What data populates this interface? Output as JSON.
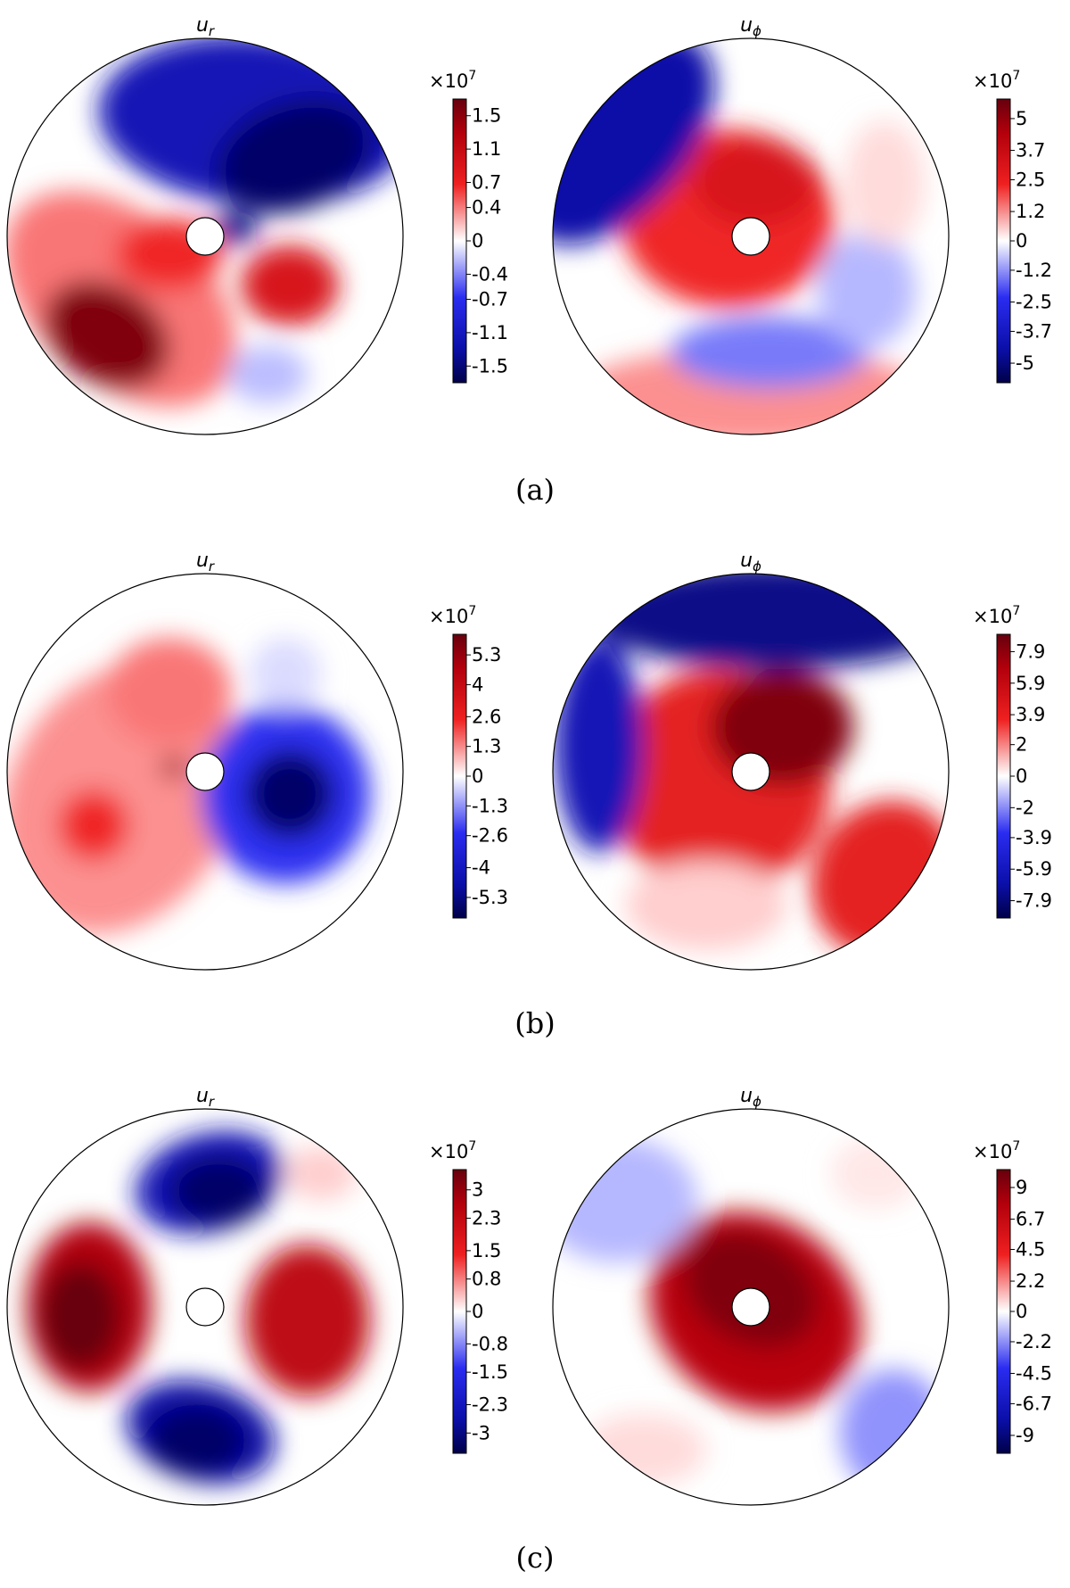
{
  "chart_data": [
    {
      "type": "heatmap",
      "panel": "(a)",
      "title": "u_r",
      "colorbar": {
        "multiplier": "×10",
        "exponent": "7",
        "ticks": [
          "1.5",
          "1.1",
          "0.7",
          "0.4",
          "0",
          "-0.4",
          "-0.7",
          "-1.1",
          "-1.5"
        ],
        "range": [
          -1.7,
          1.7
        ],
        "colormap": "seismic"
      },
      "features": [
        {
          "kind": "positive lobe",
          "region": "lower-left",
          "peak": 1.7
        },
        {
          "kind": "positive lobe",
          "region": "right of center",
          "peak": 1.1
        },
        {
          "kind": "negative lobe",
          "region": "upper half",
          "peak": -1.7
        },
        {
          "kind": "negative lobe",
          "region": "lower-right",
          "peak": -0.4
        }
      ]
    },
    {
      "type": "heatmap",
      "panel": "(a)",
      "title": "u_ϕ",
      "colorbar": {
        "multiplier": "×10",
        "exponent": "7",
        "ticks": [
          "5",
          "3.7",
          "2.5",
          "1.2",
          "0",
          "-1.2",
          "-2.5",
          "-3.7",
          "-5"
        ],
        "range": [
          -5.8,
          5.8
        ],
        "colormap": "seismic"
      },
      "features": [
        {
          "kind": "positive spiral",
          "region": "around center",
          "peak": 3.7
        },
        {
          "kind": "positive band",
          "region": "bottom rim",
          "peak": 2.5
        },
        {
          "kind": "negative band",
          "region": "upper-left rim",
          "peak": -5
        },
        {
          "kind": "negative lobe",
          "region": "lower-middle",
          "peak": -2.5
        }
      ]
    },
    {
      "type": "heatmap",
      "panel": "(b)",
      "title": "u_r",
      "colorbar": {
        "multiplier": "×10",
        "exponent": "7",
        "ticks": [
          "5.3",
          "4",
          "2.6",
          "1.3",
          "0",
          "-1.3",
          "-2.6",
          "-4",
          "-5.3"
        ],
        "range": [
          -6.2,
          6.2
        ],
        "colormap": "seismic"
      },
      "features": [
        {
          "kind": "positive lobe",
          "region": "left half",
          "peak": 2.6
        },
        {
          "kind": "negative lobe",
          "region": "right of center",
          "peak": -5.3
        },
        {
          "kind": "positive spot",
          "region": "left of hub",
          "peak": 5.3
        }
      ]
    },
    {
      "type": "heatmap",
      "panel": "(b)",
      "title": "u_ϕ",
      "colorbar": {
        "multiplier": "×10",
        "exponent": "7",
        "ticks": [
          "7.9",
          "5.9",
          "3.9",
          "2",
          "0",
          "-2",
          "-3.9",
          "-5.9",
          "-7.9"
        ],
        "range": [
          -9.0,
          9.0
        ],
        "colormap": "seismic"
      },
      "features": [
        {
          "kind": "positive core",
          "region": "upper-right of hub",
          "peak": 7.9
        },
        {
          "kind": "positive band",
          "region": "lower-right rim",
          "peak": 5.9
        },
        {
          "kind": "negative band",
          "region": "top rim",
          "peak": -5.9
        }
      ]
    },
    {
      "type": "heatmap",
      "panel": "(c)",
      "title": "u_r",
      "colorbar": {
        "multiplier": "×10",
        "exponent": "7",
        "ticks": [
          "3",
          "2.3",
          "1.5",
          "0.8",
          "0",
          "-0.8",
          "-1.5",
          "-2.3",
          "-3"
        ],
        "range": [
          -3.5,
          3.5
        ],
        "colormap": "seismic"
      },
      "features": [
        {
          "kind": "positive lobe",
          "region": "left",
          "peak": 3
        },
        {
          "kind": "positive lobe",
          "region": "right",
          "peak": 2.3
        },
        {
          "kind": "negative lobe",
          "region": "top",
          "peak": -3
        },
        {
          "kind": "negative lobe",
          "region": "bottom",
          "peak": -3
        }
      ]
    },
    {
      "type": "heatmap",
      "panel": "(c)",
      "title": "u_ϕ",
      "colorbar": {
        "multiplier": "×10",
        "exponent": "7",
        "ticks": [
          "9",
          "6.7",
          "4.5",
          "2.2",
          "0",
          "-2.2",
          "-4.5",
          "-6.7",
          "-9"
        ],
        "range": [
          -10.3,
          10.3
        ],
        "colormap": "seismic"
      },
      "features": [
        {
          "kind": "positive ring",
          "region": "around center, tilted",
          "peak": 9
        },
        {
          "kind": "negative band",
          "region": "upper-left rim",
          "peak": -2.2
        },
        {
          "kind": "negative band",
          "region": "lower-right rim",
          "peak": -4.5
        }
      ]
    }
  ],
  "panel_labels": [
    "(a)",
    "(b)",
    "(c)"
  ]
}
